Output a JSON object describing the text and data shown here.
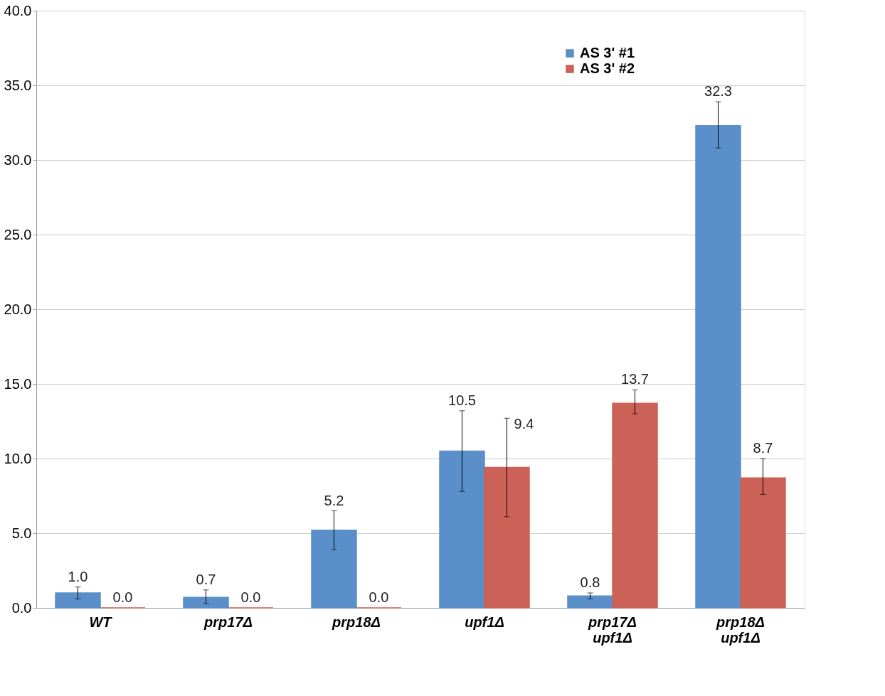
{
  "chart_data": {
    "type": "bar",
    "categories": [
      "WT",
      "prp17Δ",
      "prp18Δ",
      "upf1Δ",
      "prp17Δ upf1Δ",
      "prp18Δ upf1Δ"
    ],
    "series": [
      {
        "name": "AS 3' #1",
        "color": "#5b8fc9",
        "values": [
          1.0,
          0.7,
          5.2,
          10.5,
          0.8,
          32.3
        ],
        "value_labels": [
          "1.0",
          "0.7",
          "5.2",
          "10.5",
          "0.8",
          "32.3"
        ],
        "errors": [
          [
            0.6,
            1.4
          ],
          [
            0.3,
            1.2
          ],
          [
            3.9,
            6.5
          ],
          [
            7.8,
            13.2
          ],
          [
            0.6,
            1.0
          ],
          [
            30.8,
            33.9
          ]
        ]
      },
      {
        "name": "AS 3' #2",
        "color": "#cc6158",
        "values": [
          0.0,
          0.0,
          0.0,
          9.4,
          13.7,
          8.7
        ],
        "value_labels": [
          "0.0",
          "0.0",
          "0.0",
          "9.4",
          "13.7",
          "8.7"
        ],
        "errors": [
          null,
          null,
          null,
          [
            6.1,
            12.7
          ],
          [
            13.0,
            14.6
          ],
          [
            7.6,
            10.0
          ]
        ]
      }
    ],
    "ylim": [
      0,
      40
    ],
    "yticks": [
      {
        "value": 0,
        "label": "0.0"
      },
      {
        "value": 5,
        "label": "5.0"
      },
      {
        "value": 10,
        "label": "10.0"
      },
      {
        "value": 15,
        "label": "15.0"
      },
      {
        "value": 20,
        "label": "20.0"
      },
      {
        "value": 25,
        "label": "25.0"
      },
      {
        "value": 30,
        "label": "30.0"
      },
      {
        "value": 35,
        "label": "35.0"
      },
      {
        "value": 40,
        "label": "40.0"
      }
    ],
    "grid": "y",
    "legend": "top right"
  }
}
